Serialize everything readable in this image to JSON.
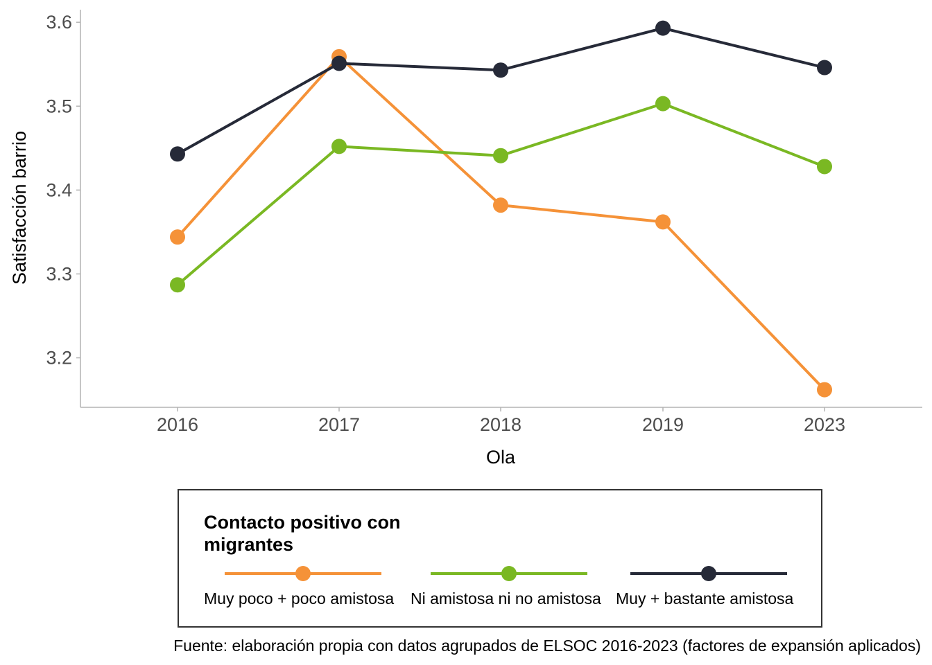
{
  "chart_data": {
    "type": "line",
    "categories": [
      "2016",
      "2017",
      "2018",
      "2019",
      "2023"
    ],
    "series": [
      {
        "name": "Muy poco + poco amistosa",
        "color": "#f59238",
        "values": [
          3.344,
          3.559,
          3.382,
          3.362,
          3.162
        ]
      },
      {
        "name": "Ni amistosa ni no amistosa",
        "color": "#7ab823",
        "values": [
          3.287,
          3.452,
          3.441,
          3.503,
          3.428
        ]
      },
      {
        "name": "Muy + bastante amistosa",
        "color": "#262a38",
        "values": [
          3.443,
          3.551,
          3.543,
          3.593,
          3.546
        ]
      }
    ],
    "xlabel": "Ola",
    "ylabel": "Satisfacción barrio",
    "yticks": [
      "3.2",
      "3.3",
      "3.4",
      "3.5",
      "3.6"
    ],
    "ylim": [
      3.141,
      3.615
    ],
    "grid": false,
    "legend": {
      "title": "Contacto positivo con migrantes",
      "placement": "bottom"
    },
    "caption": "Fuente: elaboración propia con datos agrupados de ELSOC 2016-2023 (factores de expansión aplicados)"
  }
}
